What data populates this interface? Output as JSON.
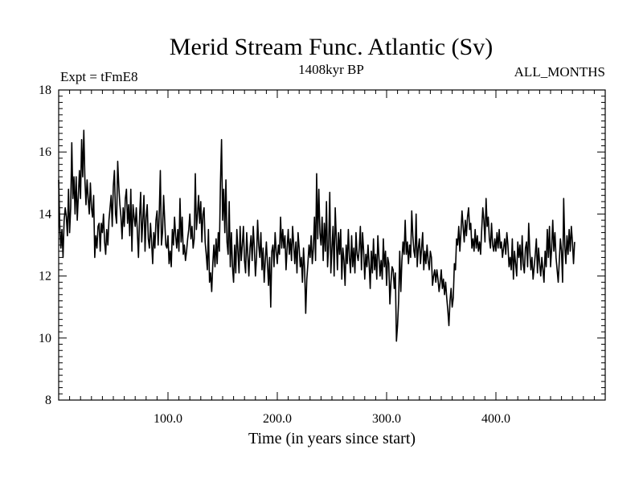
{
  "chart_data": {
    "type": "line",
    "title": "Merid Stream Func. Atlantic (Sv)",
    "subtitle_left": "Expt = tFmE8",
    "subtitle_center": "1408kyr BP",
    "subtitle_right": "ALL_MONTHS",
    "xlabel": "Time (in years since start)",
    "ylabel": "",
    "xlim": [
      0,
      500
    ],
    "ylim": [
      8,
      18
    ],
    "x_ticks": [
      100,
      200,
      300,
      400
    ],
    "x_tick_labels": [
      "100.0",
      "200.0",
      "300.0",
      "400.0"
    ],
    "y_ticks": [
      8,
      10,
      12,
      14,
      16,
      18
    ],
    "y_tick_labels": [
      "8",
      "10",
      "12",
      "14",
      "16",
      "18"
    ],
    "x_start": 0,
    "x_step": 1,
    "series": [
      {
        "name": "Merid Stream Func. Atlantic",
        "values": [
          15.1,
          13.6,
          12.9,
          13.5,
          12.6,
          13.8,
          14.2,
          13.9,
          13.3,
          14.8,
          13.4,
          14.2,
          16.3,
          14.5,
          15.2,
          14.0,
          15.2,
          13.8,
          14.6,
          15.4,
          14.5,
          16.4,
          15.2,
          16.7,
          15.1,
          14.3,
          15.1,
          14.5,
          14.0,
          15.0,
          14.2,
          13.9,
          14.6,
          12.6,
          13.3,
          12.9,
          13.6,
          13.7,
          12.8,
          13.7,
          13.4,
          14.0,
          13.1,
          12.7,
          13.5,
          13.0,
          13.8,
          14.2,
          14.6,
          13.6,
          14.9,
          15.4,
          14.0,
          13.7,
          15.7,
          14.9,
          14.3,
          13.9,
          13.2,
          14.2,
          13.6,
          14.5,
          14.8,
          13.7,
          14.3,
          13.3,
          14.8,
          12.8,
          14.3,
          13.9,
          13.6,
          14.2,
          13.4,
          12.6,
          13.9,
          14.7,
          13.1,
          13.8,
          14.6,
          12.8,
          13.9,
          14.3,
          13.2,
          12.9,
          13.7,
          13.1,
          12.4,
          13.4,
          12.9,
          13.8,
          14.1,
          13.0,
          14.0,
          15.4,
          13.0,
          13.4,
          14.6,
          13.8,
          13.0,
          12.9,
          13.3,
          12.4,
          12.8,
          12.3,
          13.5,
          13.0,
          13.9,
          13.3,
          12.9,
          13.5,
          12.8,
          14.5,
          13.1,
          13.9,
          12.7,
          13.0,
          12.5,
          12.8,
          13.2,
          13.5,
          14.0,
          13.2,
          13.6,
          12.9,
          13.2,
          15.3,
          13.5,
          14.0,
          14.6,
          13.7,
          14.4,
          13.1,
          14.0,
          14.2,
          13.1,
          12.7,
          12.2,
          13.5,
          11.8,
          12.1,
          11.5,
          12.4,
          13.0,
          12.3,
          13.2,
          12.4,
          13.4,
          12.8,
          15.0,
          16.4,
          13.8,
          14.8,
          13.4,
          15.1,
          13.1,
          12.7,
          14.4,
          12.3,
          13.4,
          12.3,
          11.8,
          13.0,
          12.1,
          13.5,
          12.8,
          12.1,
          13.6,
          12.5,
          13.0,
          13.6,
          12.5,
          12.1,
          13.4,
          12.7,
          12.0,
          12.9,
          13.3,
          12.5,
          13.6,
          12.9,
          12.0,
          12.6,
          13.8,
          13.0,
          12.6,
          13.4,
          12.2,
          12.9,
          11.8,
          12.5,
          13.1,
          12.4,
          11.7,
          12.6,
          11.0,
          12.8,
          13.0,
          12.3,
          13.4,
          12.8,
          12.4,
          13.0,
          12.7,
          13.9,
          12.9,
          13.5,
          12.9,
          13.3,
          12.2,
          12.9,
          13.5,
          12.7,
          13.2,
          12.5,
          13.6,
          13.0,
          12.4,
          13.1,
          12.1,
          13.4,
          12.9,
          12.3,
          12.6,
          11.8,
          12.9,
          12.2,
          10.8,
          11.9,
          12.4,
          13.0,
          12.6,
          13.3,
          12.4,
          12.9,
          13.9,
          12.5,
          15.3,
          13.2,
          14.8,
          13.4,
          13.0,
          13.9,
          12.5,
          13.7,
          12.8,
          14.4,
          12.3,
          13.0,
          14.7,
          12.1,
          12.9,
          13.6,
          12.0,
          14.2,
          13.2,
          12.2,
          13.4,
          12.7,
          13.5,
          11.9,
          12.9,
          12.5,
          11.7,
          13.0,
          12.4,
          13.5,
          12.6,
          12.1,
          13.3,
          12.3,
          12.9,
          12.1,
          13.4,
          12.7,
          12.5,
          12.9,
          13.6,
          12.2,
          13.4,
          12.8,
          11.9,
          12.7,
          12.3,
          13.0,
          12.4,
          11.6,
          12.8,
          12.1,
          13.2,
          12.2,
          12.7,
          11.9,
          13.3,
          12.6,
          12.0,
          12.5,
          11.9,
          13.2,
          12.3,
          12.8,
          11.7,
          12.6,
          12.4,
          11.1,
          11.8,
          12.3,
          12.2,
          11.6,
          12.1,
          9.9,
          10.4,
          11.2,
          12.8,
          11.5,
          12.5,
          13.1,
          12.7,
          13.8,
          12.7,
          13.1,
          12.4,
          13.0,
          12.6,
          14.1,
          13.3,
          12.8,
          12.6,
          14.0,
          12.3,
          12.9,
          13.2,
          12.4,
          12.9,
          13.4,
          12.2,
          12.8,
          12.4,
          13.0,
          12.5,
          12.2,
          12.8,
          12.6,
          11.7,
          12.0,
          12.2,
          11.8,
          12.2,
          11.9,
          11.5,
          11.8,
          12.2,
          11.6,
          11.9,
          11.4,
          11.8,
          11.3,
          10.9,
          10.4,
          11.2,
          11.6,
          11.0,
          11.3,
          12.4,
          12.2,
          13.2,
          13.0,
          13.6,
          12.8,
          13.4,
          14.1,
          13.6,
          13.1,
          13.8,
          13.3,
          13.9,
          14.2,
          13.5,
          13.7,
          12.9,
          13.2,
          12.8,
          13.5,
          12.9,
          13.3,
          12.8,
          13.1,
          12.7,
          13.5,
          14.2,
          13.8,
          13.1,
          14.5,
          13.6,
          13.9,
          13.2,
          12.9,
          13.7,
          13.0,
          12.8,
          13.2,
          12.8,
          13.4,
          12.9,
          13.5,
          12.9,
          13.1,
          12.6,
          12.9,
          13.2,
          12.7,
          13.4,
          13.0,
          12.3,
          12.6,
          12.2,
          13.2,
          11.9,
          12.8,
          12.4,
          12.0,
          13.1,
          12.6,
          13.0,
          12.2,
          13.3,
          12.4,
          12.1,
          12.9,
          13.1,
          12.3,
          13.7,
          12.8,
          12.2,
          12.6,
          11.9,
          12.3,
          12.7,
          13.2,
          12.1,
          12.9,
          12.4,
          12.0,
          12.6,
          12.2,
          11.8,
          12.8,
          12.3,
          13.5,
          12.6,
          13.6,
          12.3,
          12.9,
          13.8,
          12.8,
          13.4,
          12.6,
          12.2,
          11.8,
          12.5,
          13.2,
          12.8,
          11.8,
          14.5,
          13.0,
          12.4,
          13.3,
          12.7,
          13.5,
          12.8,
          13.6,
          13.1,
          12.4,
          13.1
        ]
      }
    ]
  }
}
